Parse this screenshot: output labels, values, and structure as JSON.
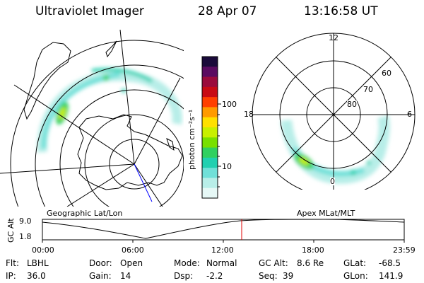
{
  "header": {
    "title": "Ultraviolet Imager",
    "date": "28 Apr 07",
    "time": "13:16:58 UT"
  },
  "colorbar": {
    "label": "photon cm⁻²s⁻¹",
    "ticks": [
      "100",
      "10"
    ],
    "colors": [
      "#1a0a3a",
      "#5a0a60",
      "#9a0a3c",
      "#c80a14",
      "#ff4000",
      "#ff9a00",
      "#ffe000",
      "#c8f000",
      "#78e000",
      "#30d060",
      "#20d0b0",
      "#70e0d8",
      "#b8eee8",
      "#e6f8f6"
    ]
  },
  "left_map": {
    "label": "Geographic Lat/Lon"
  },
  "right_map": {
    "label": "Apex MLat/MLT",
    "clock_labels": {
      "top": "12",
      "left": "18",
      "right": "6",
      "bottom": "0"
    },
    "lat_labels": [
      "60",
      "70",
      "80"
    ]
  },
  "altitude_panel": {
    "axis_label": "GC Alt",
    "y_ticks": [
      "9.0",
      "1.8"
    ],
    "x_ticks": [
      "00:00",
      "06:00",
      "12:00",
      "18:00",
      "23:59"
    ],
    "marker_time": "13:16:58"
  },
  "footer": {
    "flt_label": "Flt:",
    "flt_value": "LBHL",
    "ip_label": "IP:",
    "ip_value": "36.0",
    "door_label": "Door:",
    "door_value": "Open",
    "gain_label": "Gain:",
    "gain_value": "14",
    "mode_label": "Mode:",
    "mode_value": "Normal",
    "dsp_label": "Dsp:",
    "dsp_value": "-2.2",
    "gcalt_label": "GC Alt:",
    "gcalt_value": "8.6 Re",
    "seq_label": "Seq:",
    "seq_value": "39",
    "glat_label": "GLat:",
    "glat_value": "-68.5",
    "glon_label": "GLon:",
    "glon_value": "141.9"
  }
}
